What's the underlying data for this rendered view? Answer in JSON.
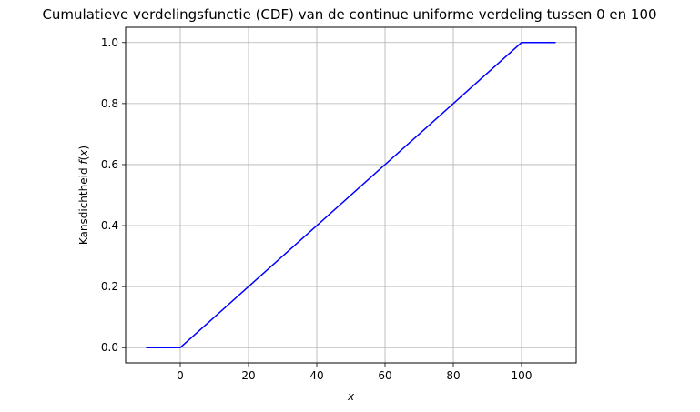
{
  "chart_data": {
    "type": "line",
    "title": "Cumulatieve verdelingsfunctie (CDF) van de continue uniforme verdeling tussen 0 en 100",
    "xlabel": "x",
    "ylabel_prefix": "Kansdichtheid ",
    "ylabel_func": "f",
    "ylabel_open": "(",
    "ylabel_var": "x",
    "ylabel_close": ")",
    "xlim": [
      -16,
      116
    ],
    "ylim": [
      -0.05,
      1.05
    ],
    "x_ticks": [
      0,
      20,
      40,
      60,
      80,
      100
    ],
    "x_tick_labels": [
      "0",
      "20",
      "40",
      "60",
      "80",
      "100"
    ],
    "y_ticks": [
      0.0,
      0.2,
      0.4,
      0.6,
      0.8,
      1.0
    ],
    "y_tick_labels": [
      "0.0",
      "0.2",
      "0.4",
      "0.6",
      "0.8",
      "1.0"
    ],
    "grid": true,
    "series": [
      {
        "color": "#0000ff",
        "x": [
          -10,
          0,
          100,
          110
        ],
        "y": [
          0,
          0,
          1,
          1
        ]
      }
    ]
  }
}
